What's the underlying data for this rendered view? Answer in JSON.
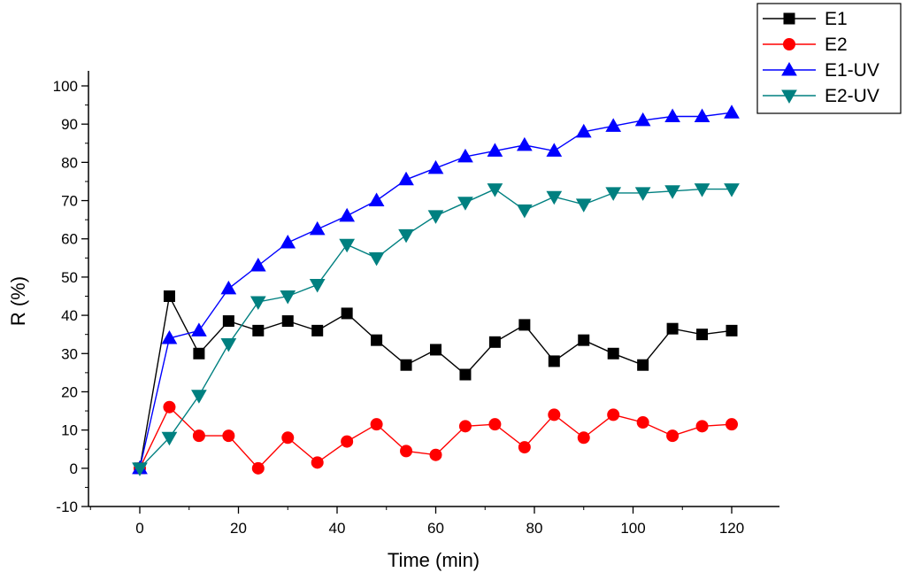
{
  "chart_data": {
    "type": "line",
    "title": "",
    "xlabel": "Time (min)",
    "ylabel": "R (%)",
    "xlim": [
      -18,
      130
    ],
    "ylim": [
      -10,
      100
    ],
    "xticks": [
      0,
      20,
      40,
      60,
      80,
      100,
      120
    ],
    "yticks": [
      -10,
      0,
      10,
      20,
      30,
      40,
      50,
      60,
      70,
      80,
      90,
      100
    ],
    "x": [
      0,
      6,
      12,
      18,
      24,
      30,
      36,
      42,
      48,
      54,
      60,
      66,
      72,
      78,
      84,
      90,
      96,
      102,
      108,
      114,
      120
    ],
    "legend_position": "top-right",
    "series": [
      {
        "name": "E1",
        "color": "#000000",
        "marker": "square",
        "values": [
          0,
          45,
          30,
          38.5,
          36,
          38.5,
          36,
          40.5,
          33.5,
          27,
          31,
          24.5,
          33,
          37.5,
          28,
          33.5,
          30,
          27,
          36.5,
          35,
          36
        ]
      },
      {
        "name": "E2",
        "color": "#ff0000",
        "marker": "circle",
        "values": [
          0,
          16,
          8.5,
          8.5,
          0,
          8,
          1.5,
          7,
          11.5,
          4.5,
          3.5,
          11,
          11.5,
          5.5,
          14,
          8,
          14,
          12,
          8.5,
          11,
          11.5
        ]
      },
      {
        "name": "E1-UV",
        "color": "#0000ff",
        "marker": "triangle-up",
        "values": [
          0,
          34,
          36,
          47,
          53,
          59,
          62.5,
          66,
          70,
          75.5,
          78.5,
          81.5,
          83,
          84.5,
          83,
          88,
          89.5,
          91,
          92,
          92,
          93
        ]
      },
      {
        "name": "E2-UV",
        "color": "#008080",
        "marker": "triangle-down",
        "values": [
          0,
          8,
          19,
          32.5,
          43.5,
          45,
          48,
          58.5,
          55,
          61,
          66,
          69.5,
          73,
          67.5,
          71,
          69,
          72,
          72,
          72.5,
          73,
          73
        ]
      }
    ]
  }
}
